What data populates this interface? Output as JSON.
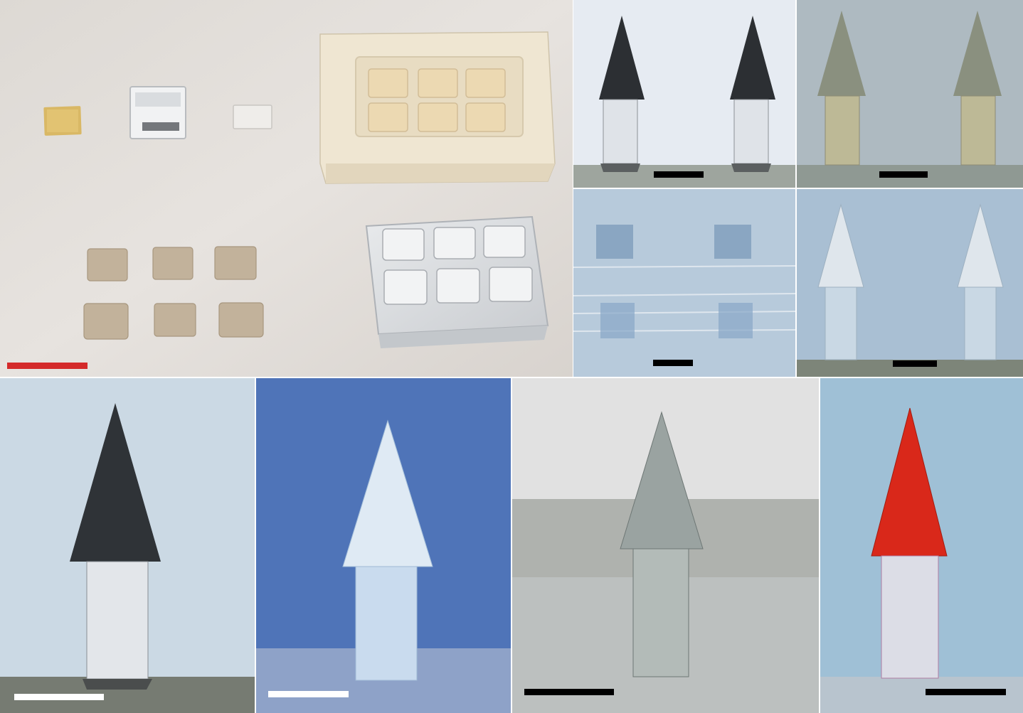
{
  "figure": {
    "panels": [
      {
        "id": "a",
        "subject": "molds-and-patches",
        "scalebar_color": "#d42a2a"
      },
      {
        "id": "b1",
        "subject": "microneedles-pair-dark-tip",
        "scalebar_color": "#000000"
      },
      {
        "id": "b2",
        "subject": "microneedles-pair-grey",
        "scalebar_color": "#000000"
      },
      {
        "id": "b3",
        "subject": "microneedles-pair-blurred",
        "scalebar_color": "#000000"
      },
      {
        "id": "b4",
        "subject": "microneedles-pair-clear",
        "scalebar_color": "#000000"
      },
      {
        "id": "c1",
        "subject": "single-microneedle-dark-tip",
        "scalebar_color": "#ffffff"
      },
      {
        "id": "c2",
        "subject": "single-microneedle-blue-bg",
        "scalebar_color": "#ffffff"
      },
      {
        "id": "c3",
        "subject": "single-microneedle-grey",
        "scalebar_color": "#000000"
      },
      {
        "id": "c4",
        "subject": "single-microneedle-red-tip",
        "scalebar_color": "#000000"
      }
    ]
  }
}
